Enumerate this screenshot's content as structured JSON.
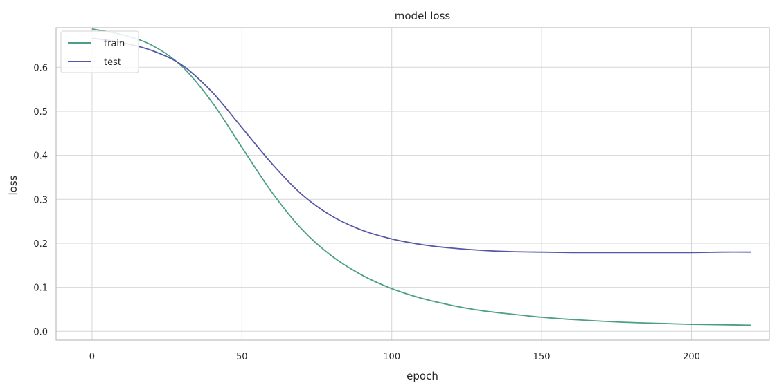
{
  "chart_data": {
    "type": "line",
    "title": "model loss",
    "xlabel": "epoch",
    "ylabel": "loss",
    "xlim": [
      -12,
      226
    ],
    "ylim": [
      -0.02,
      0.69
    ],
    "xticks": [
      0,
      50,
      100,
      150,
      200
    ],
    "yticks": [
      0.0,
      0.1,
      0.2,
      0.3,
      0.4,
      0.5,
      0.6
    ],
    "xtick_labels": [
      "0",
      "50",
      "100",
      "150",
      "200"
    ],
    "ytick_labels": [
      "0.0",
      "0.1",
      "0.2",
      "0.3",
      "0.4",
      "0.5",
      "0.6"
    ],
    "grid": true,
    "legend_position": "top-left",
    "x": [
      0,
      10,
      20,
      30,
      40,
      50,
      60,
      70,
      80,
      90,
      100,
      110,
      120,
      130,
      140,
      150,
      160,
      170,
      180,
      190,
      200,
      210,
      220
    ],
    "series": [
      {
        "name": "train",
        "color": "#4c9e86",
        "values": [
          0.687,
          0.674,
          0.65,
          0.602,
          0.521,
          0.418,
          0.316,
          0.232,
          0.171,
          0.128,
          0.097,
          0.075,
          0.059,
          0.047,
          0.039,
          0.032,
          0.027,
          0.023,
          0.02,
          0.018,
          0.016,
          0.015,
          0.014
        ]
      },
      {
        "name": "test",
        "color": "#5457a6",
        "values": [
          0.666,
          0.656,
          0.638,
          0.605,
          0.544,
          0.463,
          0.381,
          0.311,
          0.262,
          0.23,
          0.21,
          0.197,
          0.189,
          0.184,
          0.181,
          0.18,
          0.179,
          0.179,
          0.179,
          0.179,
          0.179,
          0.18,
          0.18
        ]
      }
    ]
  }
}
